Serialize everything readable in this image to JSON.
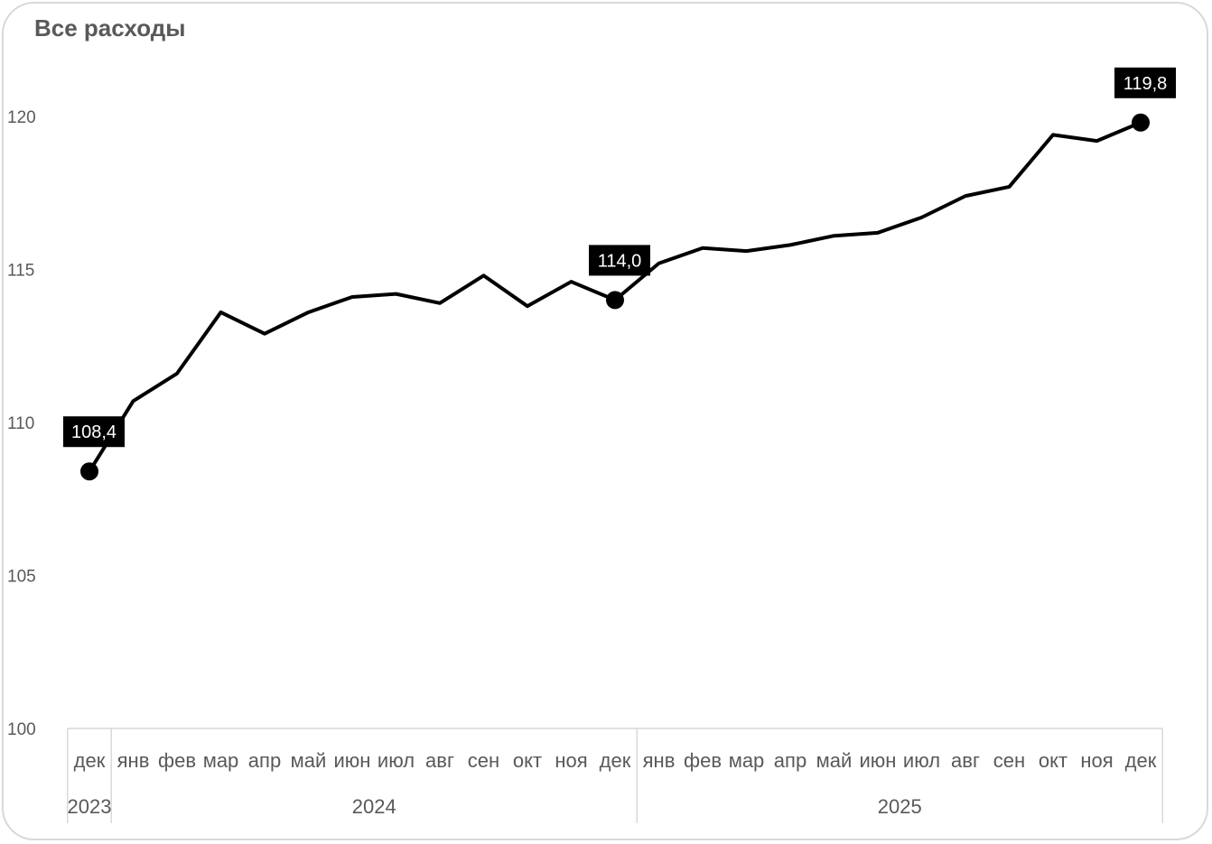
{
  "chart_data": {
    "type": "line",
    "title": "Все расходы",
    "ylim": [
      100,
      120
    ],
    "yticks": [
      "100",
      "105",
      "110",
      "115",
      "120"
    ],
    "categories": [
      "дек",
      "янв",
      "фев",
      "мар",
      "апр",
      "май",
      "июн",
      "июл",
      "авг",
      "сен",
      "окт",
      "ноя",
      "дек",
      "янв",
      "фев",
      "мар",
      "апр",
      "май",
      "июн",
      "июл",
      "авг",
      "сен",
      "окт",
      "ноя",
      "дек"
    ],
    "years": [
      {
        "label": "2023",
        "start": 0,
        "end": 0
      },
      {
        "label": "2024",
        "start": 1,
        "end": 12
      },
      {
        "label": "2025",
        "start": 13,
        "end": 24
      }
    ],
    "series": [
      {
        "values": [
          108.4,
          110.7,
          111.6,
          113.6,
          112.9,
          113.6,
          114.1,
          114.2,
          113.9,
          114.8,
          113.8,
          114.6,
          114.0,
          115.2,
          115.7,
          115.6,
          115.8,
          116.1,
          116.2,
          116.7,
          117.4,
          117.7,
          119.4,
          119.2,
          119.8
        ],
        "color": "#000000"
      }
    ],
    "data_labels": [
      {
        "index": 0,
        "text": "108,4"
      },
      {
        "index": 12,
        "text": "114,0"
      },
      {
        "index": 24,
        "text": "119,8"
      }
    ],
    "grid": false,
    "legend": "none"
  }
}
